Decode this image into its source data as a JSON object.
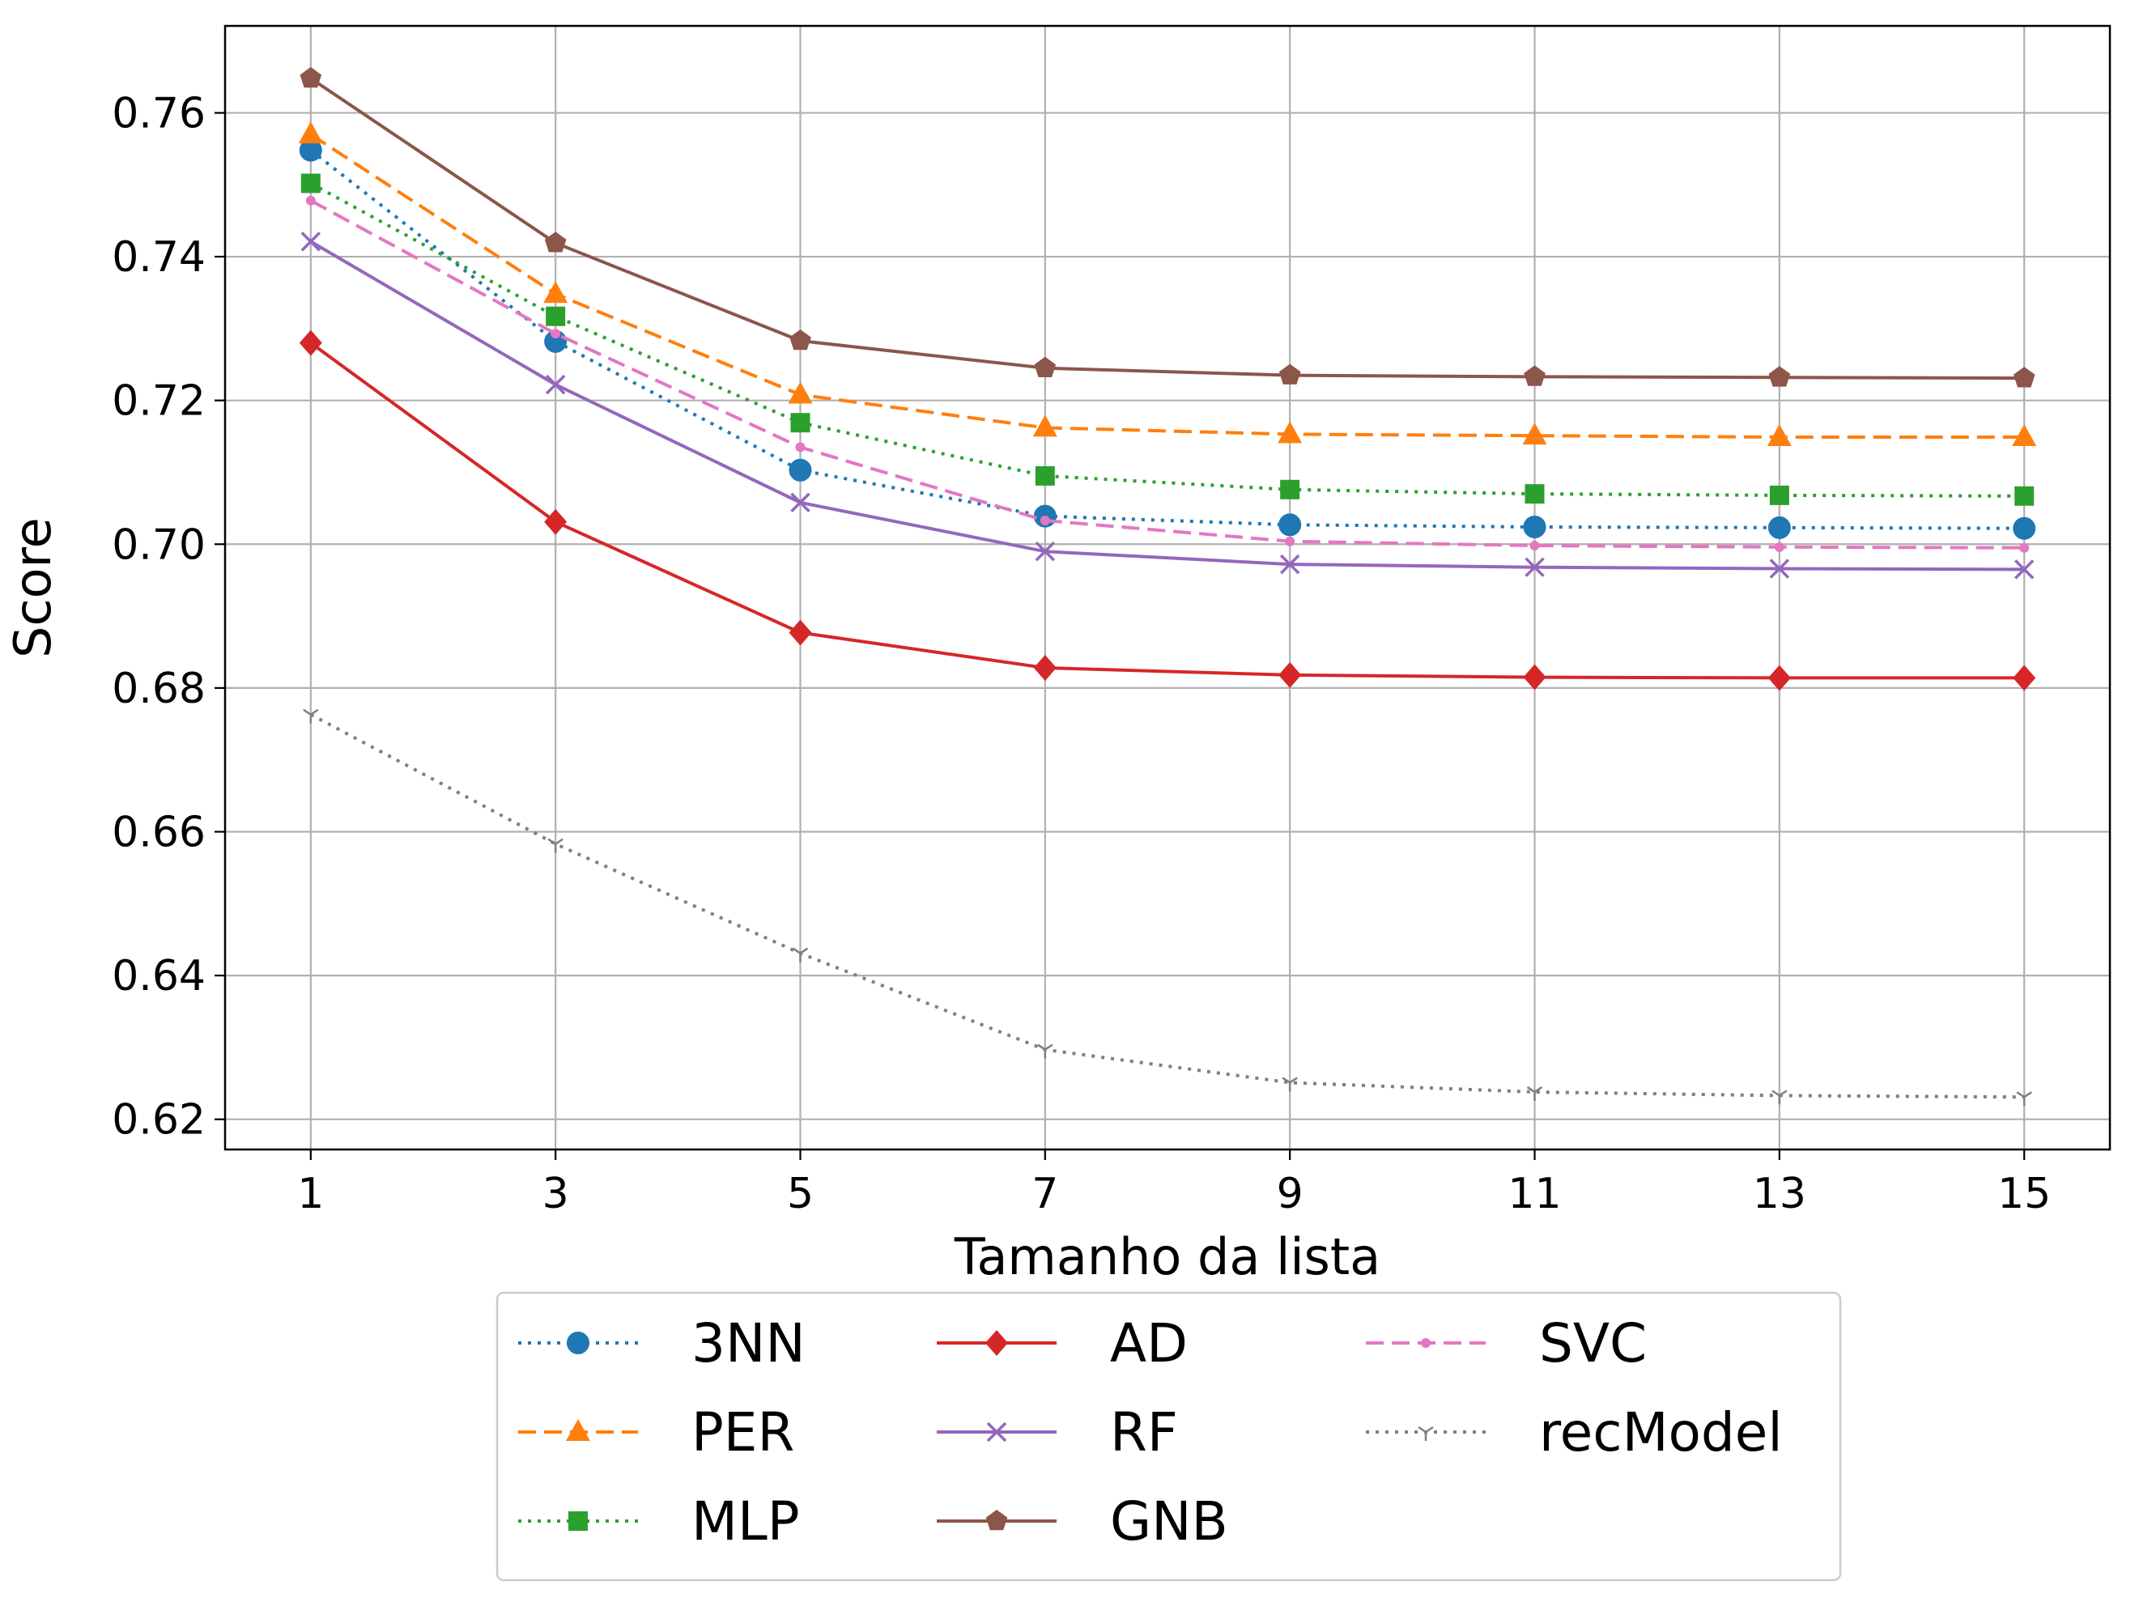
{
  "chart_data": {
    "type": "line",
    "xlabel": "Tamanho da lista",
    "ylabel": "Score",
    "x": [
      1,
      3,
      5,
      7,
      9,
      11,
      13,
      15
    ],
    "xticks": [
      "1",
      "3",
      "5",
      "7",
      "9",
      "11",
      "13",
      "15"
    ],
    "xlim": [
      0.3,
      15.7
    ],
    "yticks": [
      "0.62",
      "0.64",
      "0.66",
      "0.68",
      "0.70",
      "0.72",
      "0.74",
      "0.76"
    ],
    "ylim": [
      0.6158,
      0.7721
    ],
    "grid": true,
    "legend_position": "bottom-center",
    "series": [
      {
        "name": "3NN",
        "color": "#1f77b4",
        "linestyle": "dotted",
        "marker": "circle",
        "values": [
          0.7548,
          0.7282,
          0.7103,
          0.7039,
          0.7027,
          0.7024,
          0.7023,
          0.7022
        ]
      },
      {
        "name": "PER",
        "color": "#ff7f0e",
        "linestyle": "dashed",
        "marker": "triangle-up",
        "values": [
          0.757,
          0.7348,
          0.7208,
          0.7162,
          0.7153,
          0.7151,
          0.7149,
          0.7149
        ]
      },
      {
        "name": "MLP",
        "color": "#2ca02c",
        "linestyle": "dotted",
        "marker": "square",
        "values": [
          0.7502,
          0.7317,
          0.7169,
          0.7095,
          0.7076,
          0.707,
          0.7068,
          0.7067
        ]
      },
      {
        "name": "AD",
        "color": "#d62728",
        "linestyle": "solid",
        "marker": "diamond",
        "values": [
          0.728,
          0.7031,
          0.6877,
          0.6828,
          0.6818,
          0.6815,
          0.6814,
          0.6814
        ]
      },
      {
        "name": "RF",
        "color": "#9467bd",
        "linestyle": "solid",
        "marker": "x",
        "values": [
          0.7421,
          0.7222,
          0.7058,
          0.699,
          0.6972,
          0.6968,
          0.6966,
          0.6965
        ]
      },
      {
        "name": "GNB",
        "color": "#8c564b",
        "linestyle": "solid",
        "marker": "pentagon",
        "values": [
          0.7648,
          0.7419,
          0.7283,
          0.7245,
          0.7235,
          0.7233,
          0.7232,
          0.7231
        ]
      },
      {
        "name": "SVC",
        "color": "#e377c2",
        "linestyle": "dashed",
        "marker": "point",
        "values": [
          0.7478,
          0.7293,
          0.7135,
          0.7033,
          0.7004,
          0.6998,
          0.6996,
          0.6995
        ]
      },
      {
        "name": "recModel",
        "color": "#7f7f7f",
        "linestyle": "dotted",
        "marker": "tri-down",
        "values": [
          0.6763,
          0.6583,
          0.6431,
          0.6297,
          0.6251,
          0.6238,
          0.6233,
          0.6231
        ]
      }
    ]
  }
}
